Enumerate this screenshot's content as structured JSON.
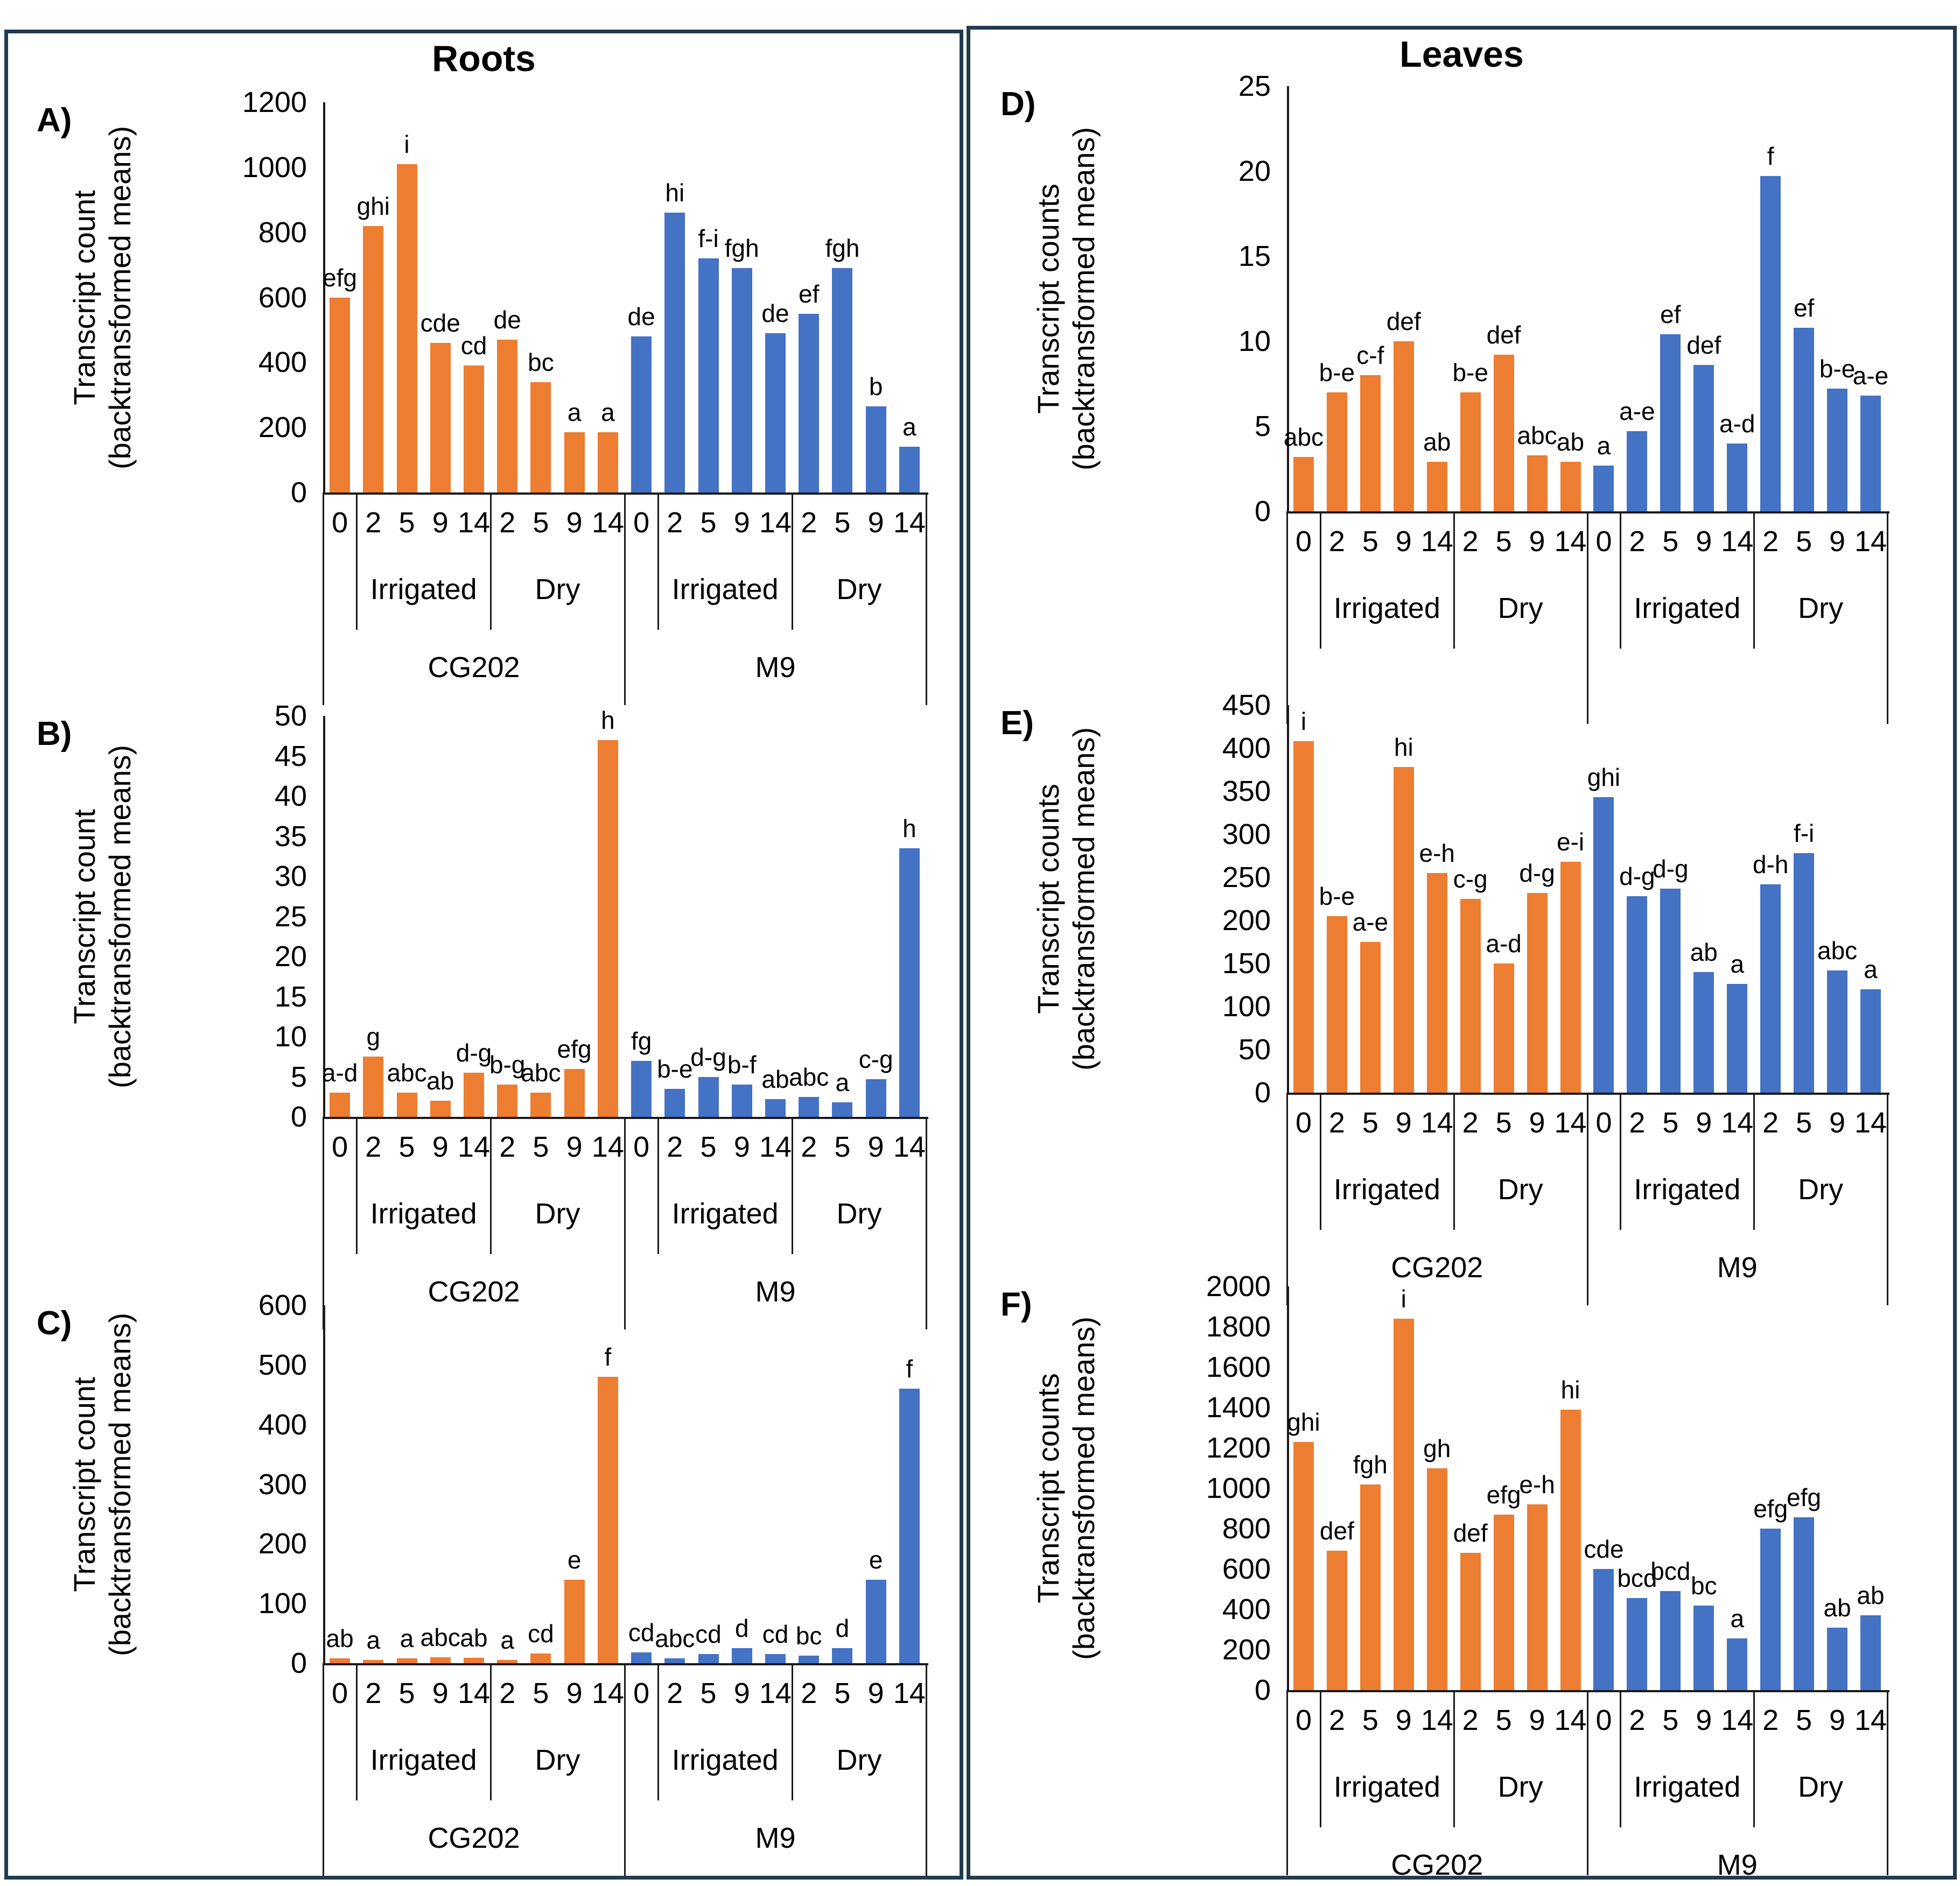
{
  "titles": {
    "left": "Roots",
    "right": "Leaves"
  },
  "colors": {
    "cg202_series": "#ED7D31",
    "m9_series": "#4472C4",
    "frame_border": "#213B4F",
    "axis": "#1a1a1a"
  },
  "x_structure": {
    "tick_labels": [
      "0",
      "2",
      "5",
      "9",
      "14",
      "2",
      "5",
      "9",
      "14",
      "0",
      "2",
      "5",
      "9",
      "14",
      "2",
      "5",
      "9",
      "14"
    ],
    "treatments": [
      {
        "label": "Irrigated",
        "start": 1,
        "span": 4
      },
      {
        "label": "Dry",
        "start": 5,
        "span": 4
      },
      {
        "label": "Irrigated",
        "start": 10,
        "span": 4
      },
      {
        "label": "Dry",
        "start": 14,
        "span": 4
      }
    ],
    "genotypes": [
      {
        "label": "CG202",
        "start": 0,
        "span": 9
      },
      {
        "label": "M9",
        "start": 9,
        "span": 9
      }
    ],
    "full_line_indices": [
      0,
      9,
      18
    ],
    "mid_line_indices": [
      1,
      5,
      10,
      14
    ]
  },
  "chart_data": [
    {
      "id": "A",
      "panel_label": "A)",
      "type": "bar",
      "column": "Roots",
      "ylabel": [
        "Transcript count",
        "(backtransformed means)"
      ],
      "ylim": [
        0,
        1200
      ],
      "ystep": 200,
      "grid": false,
      "show_genotype_row": true,
      "series_names": [
        "CG202",
        "M9"
      ],
      "values": [
        600,
        820,
        1010,
        460,
        390,
        470,
        340,
        185,
        185,
        480,
        860,
        720,
        690,
        490,
        550,
        690,
        265,
        140
      ],
      "sig_letters": [
        "efg",
        "ghi",
        "i",
        "cde",
        "cd",
        "de",
        "bc",
        "a",
        "a",
        "de",
        "hi",
        "f-i",
        "fgh",
        "de",
        "ef",
        "fgh",
        "b",
        "a"
      ]
    },
    {
      "id": "B",
      "panel_label": "B)",
      "type": "bar",
      "column": "Roots",
      "ylabel": [
        "Transcript count",
        "(backtransformed means)"
      ],
      "ylim": [
        0,
        50
      ],
      "ystep": 5,
      "grid": false,
      "show_genotype_row": true,
      "series_names": [
        "CG202",
        "M9"
      ],
      "values": [
        3,
        7.5,
        3,
        2,
        5.5,
        4,
        3,
        6,
        47,
        7,
        3.5,
        5,
        4,
        2.2,
        2.5,
        1.8,
        4.7,
        33.5
      ],
      "sig_letters": [
        "a-d",
        "g",
        "abc",
        "ab",
        "d-g",
        "b-g",
        "abc",
        "efg",
        "h",
        "fg",
        "b-e",
        "d-g",
        "b-f",
        "ab",
        "abc",
        "a",
        "c-g",
        "h"
      ]
    },
    {
      "id": "C",
      "panel_label": "C)",
      "type": "bar",
      "column": "Roots",
      "ylabel": [
        "Transcript count",
        "(backtransformed means)"
      ],
      "ylim": [
        0,
        600
      ],
      "ystep": 100,
      "grid": false,
      "show_genotype_row": true,
      "series_names": [
        "CG202",
        "M9"
      ],
      "values": [
        8,
        5,
        8,
        10,
        9,
        5,
        16,
        140,
        480,
        18,
        8,
        15,
        25,
        15,
        13,
        25,
        140,
        460
      ],
      "sig_letters": [
        "ab",
        "a",
        "a",
        "abc",
        "ab",
        "a",
        "cd",
        "e",
        "f",
        "cd",
        "abc",
        "cd",
        "d",
        "cd",
        "bc",
        "d",
        "e",
        "f"
      ]
    },
    {
      "id": "D",
      "panel_label": "D)",
      "type": "bar",
      "column": "Leaves",
      "ylabel": [
        "Transcript counts",
        "(backtransformed means)"
      ],
      "ylim": [
        0,
        25
      ],
      "ystep": 5,
      "grid": false,
      "show_genotype_row": false,
      "series_names": [
        "CG202",
        "M9"
      ],
      "values": [
        3.2,
        7,
        8,
        10,
        2.9,
        7,
        9.2,
        3.3,
        2.9,
        2.7,
        4.7,
        10.4,
        8.6,
        4,
        19.7,
        10.8,
        7.2,
        6.8
      ],
      "sig_letters": [
        "abc",
        "b-e",
        "c-f",
        "def",
        "ab",
        "b-e",
        "def",
        "abc",
        "ab",
        "a",
        "a-e",
        "ef",
        "def",
        "a-d",
        "f",
        "ef",
        "b-e",
        "a-e"
      ]
    },
    {
      "id": "E",
      "panel_label": "E)",
      "type": "bar",
      "column": "Leaves",
      "ylabel": [
        "Transcript counts",
        "(backtransformed means)"
      ],
      "ylim": [
        0,
        450
      ],
      "ystep": 50,
      "grid": false,
      "show_genotype_row": true,
      "series_names": [
        "CG202",
        "M9"
      ],
      "values": [
        408,
        205,
        175,
        378,
        255,
        225,
        150,
        232,
        268,
        343,
        228,
        237,
        140,
        126,
        242,
        278,
        142,
        120
      ],
      "sig_letters": [
        "i",
        "b-e",
        "a-e",
        "hi",
        "e-h",
        "c-g",
        "a-d",
        "d-g",
        "e-i",
        "ghi",
        "d-g",
        "d-g",
        "ab",
        "a",
        "d-h",
        "f-i",
        "abc",
        "a"
      ]
    },
    {
      "id": "F",
      "panel_label": "F)",
      "type": "bar",
      "column": "Leaves",
      "ylabel": [
        "Transcript counts",
        "(backtransformed means)"
      ],
      "ylim": [
        0,
        2000
      ],
      "ystep": 200,
      "grid": false,
      "show_genotype_row": true,
      "series_names": [
        "CG202",
        "M9"
      ],
      "values": [
        1230,
        690,
        1020,
        1840,
        1100,
        680,
        870,
        920,
        1390,
        600,
        455,
        490,
        420,
        255,
        800,
        855,
        310,
        370
      ],
      "sig_letters": [
        "ghi",
        "def",
        "fgh",
        "i",
        "gh",
        "def",
        "efg",
        "e-h",
        "hi",
        "cde",
        "bcd",
        "bcd",
        "bc",
        "a",
        "efg",
        "efg",
        "ab",
        "ab"
      ]
    }
  ]
}
